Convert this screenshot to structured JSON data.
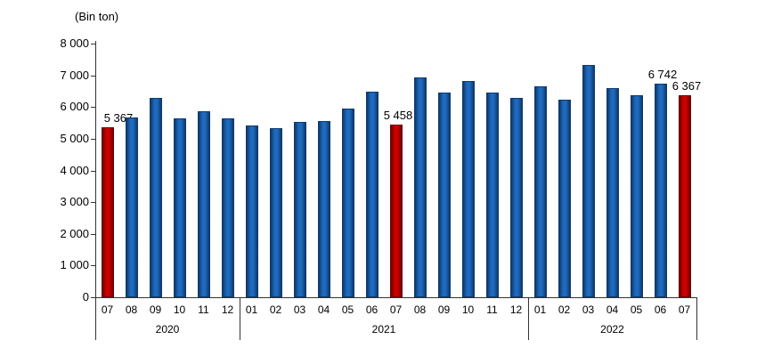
{
  "chart_data": {
    "type": "bar",
    "title": "",
    "unit_label": "(Bin ton)",
    "ylabel": "",
    "xlabel": "",
    "ylim": [
      0,
      8000
    ],
    "grid": false,
    "legend": "none",
    "colors": {
      "bar_fill": "#1E6ABF",
      "bar_edge": "#0E3A6B",
      "highlight_fill": "#CC0000",
      "highlight_edge": "#6E0000",
      "axis": "#333333",
      "text": "#000000"
    },
    "y_ticks": [
      {
        "value": 0,
        "label": "0"
      },
      {
        "value": 1000,
        "label": "1 000"
      },
      {
        "value": 2000,
        "label": "2 000"
      },
      {
        "value": 3000,
        "label": "3 000"
      },
      {
        "value": 4000,
        "label": "4 000"
      },
      {
        "value": 5000,
        "label": "5 000"
      },
      {
        "value": 6000,
        "label": "6 000"
      },
      {
        "value": 7000,
        "label": "7 000"
      },
      {
        "value": 8000,
        "label": "8 000"
      }
    ],
    "year_groups": [
      {
        "label": "2020",
        "start": 0,
        "count": 6
      },
      {
        "label": "2021",
        "start": 6,
        "count": 12
      },
      {
        "label": "2022",
        "start": 18,
        "count": 7
      }
    ],
    "points": [
      {
        "year": "2020",
        "month": "07",
        "value": 5367,
        "highlight": true,
        "label": "5 367"
      },
      {
        "year": "2020",
        "month": "08",
        "value": 5660,
        "highlight": false
      },
      {
        "year": "2020",
        "month": "09",
        "value": 6290,
        "highlight": false
      },
      {
        "year": "2020",
        "month": "10",
        "value": 5650,
        "highlight": false
      },
      {
        "year": "2020",
        "month": "11",
        "value": 5870,
        "highlight": false
      },
      {
        "year": "2020",
        "month": "12",
        "value": 5630,
        "highlight": false
      },
      {
        "year": "2021",
        "month": "01",
        "value": 5430,
        "highlight": false
      },
      {
        "year": "2021",
        "month": "02",
        "value": 5340,
        "highlight": false
      },
      {
        "year": "2021",
        "month": "03",
        "value": 5520,
        "highlight": false
      },
      {
        "year": "2021",
        "month": "04",
        "value": 5550,
        "highlight": false
      },
      {
        "year": "2021",
        "month": "05",
        "value": 5940,
        "highlight": false
      },
      {
        "year": "2021",
        "month": "06",
        "value": 6490,
        "highlight": false
      },
      {
        "year": "2021",
        "month": "07",
        "value": 5458,
        "highlight": true,
        "label": "5 458"
      },
      {
        "year": "2021",
        "month": "08",
        "value": 6940,
        "highlight": false
      },
      {
        "year": "2021",
        "month": "09",
        "value": 6450,
        "highlight": false
      },
      {
        "year": "2021",
        "month": "10",
        "value": 6810,
        "highlight": false
      },
      {
        "year": "2021",
        "month": "11",
        "value": 6470,
        "highlight": false
      },
      {
        "year": "2021",
        "month": "12",
        "value": 6290,
        "highlight": false
      },
      {
        "year": "2022",
        "month": "01",
        "value": 6660,
        "highlight": false
      },
      {
        "year": "2022",
        "month": "02",
        "value": 6240,
        "highlight": false
      },
      {
        "year": "2022",
        "month": "03",
        "value": 7340,
        "highlight": false
      },
      {
        "year": "2022",
        "month": "04",
        "value": 6590,
        "highlight": false
      },
      {
        "year": "2022",
        "month": "05",
        "value": 6380,
        "highlight": false
      },
      {
        "year": "2022",
        "month": "06",
        "value": 6742,
        "highlight": false,
        "label": "6 742"
      },
      {
        "year": "2022",
        "month": "07",
        "value": 6367,
        "highlight": true,
        "label": "6 367"
      }
    ]
  }
}
